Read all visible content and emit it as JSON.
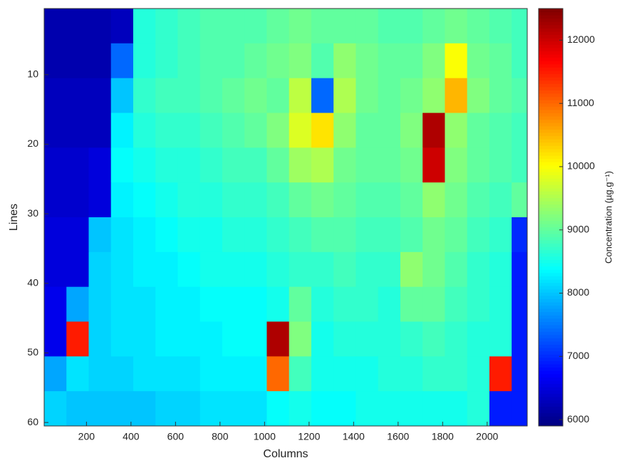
{
  "chart_data": {
    "type": "heatmap",
    "colormap": "jet",
    "xlabel": "Columns",
    "ylabel": "Lines",
    "colorbar_label": "Concentration (µg.g⁻¹)",
    "xlim": [
      10,
      2180
    ],
    "ylim": [
      0.5,
      60.5
    ],
    "y_reversed": true,
    "xticks": [
      200,
      400,
      600,
      800,
      1000,
      1200,
      1400,
      1600,
      1800,
      2000
    ],
    "yticks": [
      10,
      20,
      30,
      40,
      50,
      60
    ],
    "clim": [
      5900,
      12500
    ],
    "cticks": [
      6000,
      7000,
      8000,
      9000,
      10000,
      11000,
      12000
    ],
    "x_edges": [
      10,
      110,
      210,
      310,
      410,
      510,
      610,
      710,
      810,
      910,
      1010,
      1110,
      1210,
      1310,
      1410,
      1510,
      1610,
      1710,
      1810,
      1910,
      2010,
      2110,
      2180
    ],
    "y_edges": [
      0.5,
      5.5,
      10.5,
      15.5,
      20.5,
      25.5,
      30.5,
      35.5,
      40.5,
      45.5,
      50.5,
      55.5,
      60.5
    ],
    "values": [
      [
        6200,
        6200,
        6200,
        6300,
        8600,
        8700,
        8800,
        8900,
        8900,
        8900,
        9000,
        9100,
        9000,
        9000,
        9000,
        8900,
        8900,
        9000,
        9100,
        9000,
        8900,
        8800
      ],
      [
        6200,
        6200,
        6200,
        7400,
        8600,
        8700,
        8800,
        8900,
        8900,
        9000,
        9100,
        9200,
        8900,
        9300,
        9100,
        9000,
        9000,
        9200,
        10000,
        9100,
        9000,
        8800
      ],
      [
        6300,
        6300,
        6300,
        8000,
        8700,
        8800,
        8800,
        8900,
        9000,
        9100,
        9000,
        9600,
        7400,
        9500,
        9100,
        9000,
        9100,
        9300,
        10500,
        9200,
        9000,
        8900
      ],
      [
        6300,
        6300,
        6300,
        8300,
        8600,
        8700,
        8700,
        8800,
        8900,
        9000,
        9200,
        9800,
        10200,
        9300,
        9000,
        9000,
        9200,
        12200,
        9300,
        9000,
        8900,
        8800
      ],
      [
        6400,
        6400,
        6500,
        8400,
        8500,
        8600,
        8600,
        8700,
        8800,
        8800,
        9000,
        9400,
        9500,
        9100,
        9000,
        9000,
        9100,
        12000,
        9200,
        9000,
        8900,
        8800
      ],
      [
        6400,
        6400,
        6500,
        8300,
        8400,
        8500,
        8600,
        8600,
        8700,
        8700,
        8800,
        9000,
        9100,
        9000,
        8900,
        8900,
        9000,
        9300,
        9100,
        8900,
        8800,
        9000
      ],
      [
        6500,
        6500,
        8000,
        8200,
        8300,
        8400,
        8500,
        8500,
        8600,
        8600,
        8700,
        8800,
        8900,
        8900,
        8800,
        8800,
        8900,
        9100,
        9000,
        8800,
        8700,
        7000
      ],
      [
        6500,
        6500,
        8100,
        8200,
        8300,
        8300,
        8400,
        8500,
        8500,
        8500,
        8600,
        8700,
        8700,
        8800,
        8700,
        8700,
        9300,
        9100,
        8900,
        8700,
        8600,
        6900
      ],
      [
        6600,
        7800,
        8100,
        8200,
        8200,
        8300,
        8300,
        8400,
        8400,
        8400,
        8500,
        9000,
        8600,
        8700,
        8700,
        8600,
        9000,
        9000,
        8800,
        8700,
        8600,
        6900
      ],
      [
        6600,
        11500,
        8100,
        8200,
        8200,
        8300,
        8300,
        8300,
        8400,
        8400,
        12200,
        9200,
        8500,
        8600,
        8600,
        8600,
        8700,
        8800,
        8700,
        8600,
        8600,
        6900
      ],
      [
        7800,
        8200,
        8100,
        8100,
        8200,
        8200,
        8200,
        8300,
        8300,
        8300,
        11000,
        8800,
        8500,
        8500,
        8500,
        8600,
        8600,
        8700,
        8700,
        8600,
        11500,
        6900
      ],
      [
        8100,
        8000,
        8000,
        8000,
        8000,
        8100,
        8100,
        8200,
        8200,
        8200,
        8400,
        8500,
        8400,
        8400,
        8500,
        8500,
        8500,
        8500,
        8500,
        8600,
        6900,
        6900
      ]
    ]
  }
}
